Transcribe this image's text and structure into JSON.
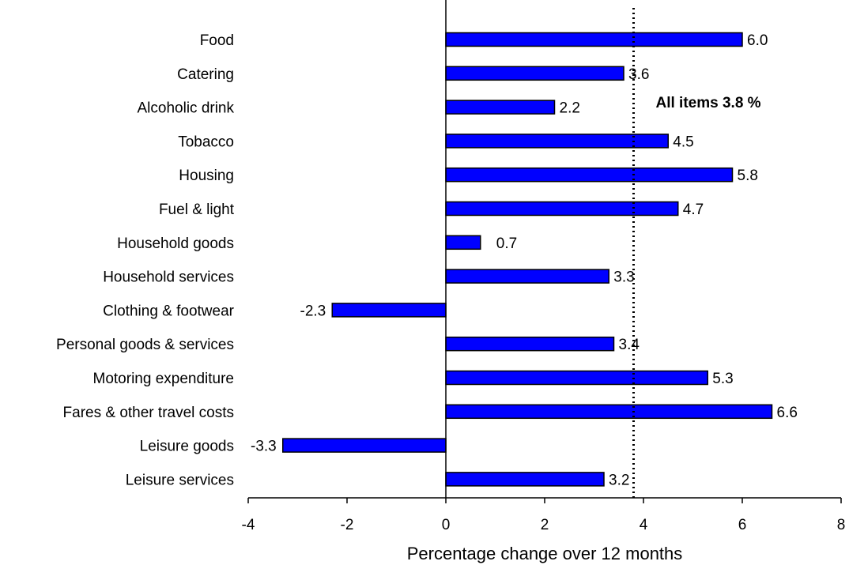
{
  "chart_data": {
    "type": "bar",
    "orientation": "horizontal",
    "categories": [
      "Food",
      "Catering",
      "Alcoholic drink",
      "Tobacco",
      "Housing",
      "Fuel & light",
      "Household goods",
      "Household services",
      "Clothing & footwear",
      "Personal goods & services",
      "Motoring expenditure",
      "Fares & other travel costs",
      "Leisure goods",
      "Leisure services"
    ],
    "values": [
      6.0,
      3.6,
      2.2,
      4.5,
      5.8,
      4.7,
      0.7,
      3.3,
      -2.3,
      3.4,
      5.3,
      6.6,
      -3.3,
      3.2
    ],
    "value_labels": [
      "6.0",
      "3.6",
      "2.2",
      "4.5",
      "5.8",
      "4.7",
      "0.7",
      "3.3",
      "-2.3",
      "3.4",
      "5.3",
      "6.6",
      "-3.3",
      "3.2"
    ],
    "xlabel": "Percentage change over 12 months",
    "ylabel": "",
    "xlim": [
      -4,
      8
    ],
    "xticks": [
      -4,
      -2,
      0,
      2,
      4,
      6,
      8
    ],
    "xtick_labels": [
      "-4",
      "-2",
      "0",
      "2",
      "4",
      "6",
      "8"
    ],
    "reference_line": {
      "value": 3.8,
      "label": "All items 3.8 %",
      "style": "dotted"
    },
    "bar_color": "#0000FF",
    "bar_edge_color": "#000000",
    "grid": false,
    "legend": "none"
  }
}
